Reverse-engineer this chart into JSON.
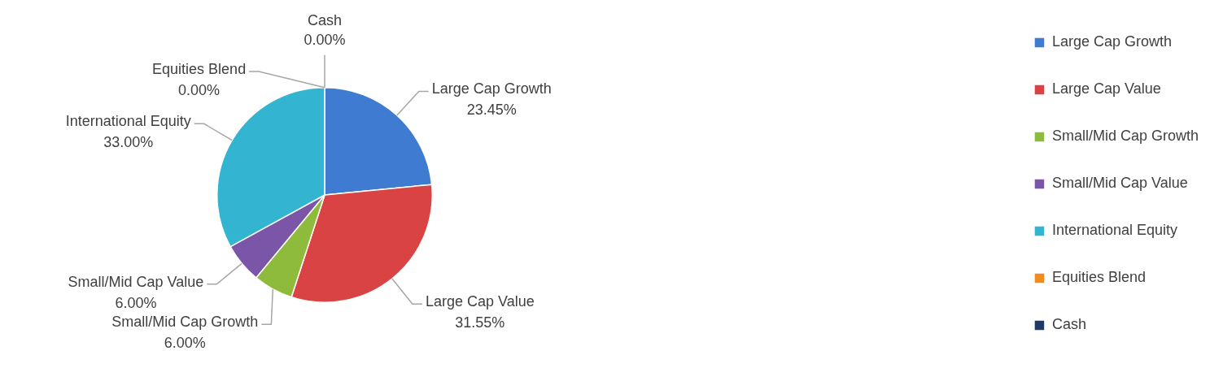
{
  "chart_data": {
    "type": "pie",
    "categories": [
      "Large Cap Growth",
      "Large Cap Value",
      "Small/Mid Cap Growth",
      "Small/Mid Cap Value",
      "International Equity",
      "Equities Blend",
      "Cash"
    ],
    "values": [
      23.45,
      31.55,
      6,
      6,
      33,
      0,
      0
    ],
    "colors": [
      "#3f7bd1",
      "#d94343",
      "#8fbb3d",
      "#7a55a8",
      "#33b5d2",
      "#f08c1e",
      "#1f3a66"
    ],
    "value_labels": [
      "23.45%",
      "31.55%",
      "6.00%",
      "6.00%",
      "33.00%",
      "0.00%",
      "0.00%"
    ],
    "legend": "right"
  }
}
